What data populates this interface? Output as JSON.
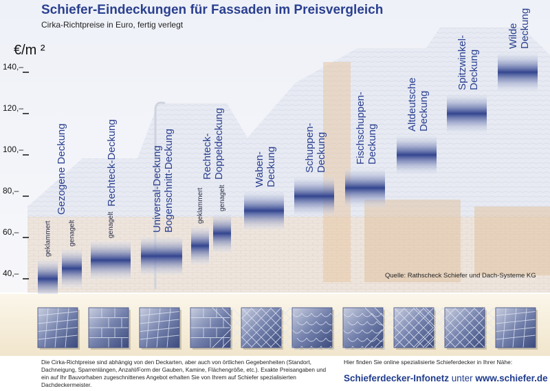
{
  "header": {
    "title": "Schiefer-Eindeckungen für Fassaden im Preisvergleich",
    "subtitle": "Cirka-Richtpreise in Euro, fertig verlegt",
    "unit": "€/m ²"
  },
  "chart_data": {
    "type": "bar",
    "title": "Schiefer-Eindeckungen für Fassaden im Preisvergleich",
    "subtitle": "Cirka-Richtpreise in Euro, fertig verlegt",
    "ylabel": "€/m ²",
    "ylim": [
      40,
      146
    ],
    "yticks": [
      "40,–",
      "60,–",
      "80,–",
      "100,–",
      "120,–",
      "140,–"
    ],
    "ytick_values": [
      40,
      60,
      80,
      100,
      120,
      140
    ],
    "categories": [
      {
        "name": "Gezogene Deckung",
        "lines": [
          "Gezogene Deckung"
        ],
        "variants": [
          {
            "label": "geklammert",
            "value": 40
          },
          {
            "label": "genagelt",
            "value": 45
          }
        ]
      },
      {
        "name": "Rechteck-Deckung",
        "lines": [
          "Rechteck-Deckung"
        ],
        "variants": [
          {
            "label": "genagelt",
            "value": 49
          }
        ]
      },
      {
        "name": "Universal-Deckung Bogenschnitt-Deckung",
        "lines": [
          "Universal-Deckung",
          "Bogenschnitt-Deckung"
        ],
        "variants": [
          {
            "label": "",
            "value": 51
          }
        ]
      },
      {
        "name": "Rechteck-Doppeldeckung",
        "lines": [
          "Rechteck-",
          "Doppeldeckung"
        ],
        "variants": [
          {
            "label": "geklammert",
            "value": 56
          },
          {
            "label": "genagelt",
            "value": 62
          }
        ]
      },
      {
        "name": "Waben-Deckung",
        "lines": [
          "Waben-",
          "Deckung"
        ],
        "variants": [
          {
            "label": "",
            "value": 73
          }
        ]
      },
      {
        "name": "Schuppen-Deckung",
        "lines": [
          "Schuppen-",
          "Deckung"
        ],
        "variants": [
          {
            "label": "",
            "value": 80
          }
        ]
      },
      {
        "name": "Fischschuppen-Deckung",
        "lines": [
          "Fischschuppen-",
          "Deckung"
        ],
        "variants": [
          {
            "label": "",
            "value": 84
          }
        ]
      },
      {
        "name": "Altdeutsche Deckung",
        "lines": [
          "Altdeutsche",
          "Deckung"
        ],
        "variants": [
          {
            "label": "",
            "value": 100
          }
        ]
      },
      {
        "name": "Spitzwinkel-Deckung",
        "lines": [
          "Spitzwinkel-",
          "Deckung"
        ],
        "variants": [
          {
            "label": "",
            "value": 120
          }
        ]
      },
      {
        "name": "Wilde Deckung",
        "lines": [
          "Wilde",
          "Deckung"
        ],
        "variants": [
          {
            "label": "",
            "value": 140
          }
        ]
      }
    ],
    "grid": false,
    "legend": "none",
    "colors": {
      "bar_dark": "#33458f",
      "bar_light": "#dde2f0",
      "title": "#2a3f8f"
    }
  },
  "source": "Quelle: Rathscheck Schiefer und Dach-Systeme KG",
  "footer": {
    "note": "Die Cirka-Richtpreise sind abhängig von den Deckarten, aber auch von örtlichen Gegebenheiten (Standort, Dachneigung, Sparrenlängen, Anzahl/Form der Gauben, Kamine, Flächengröße, etc.). Exakte Preisangaben und ein auf Ihr Bauvorhaben zugeschnittenes Angebot erhalten Sie von Ihrem auf Schiefer spezialisierten Dachdeckermeister.",
    "hint": "Hier finden Sie online spezialisierte Schieferdecker in Ihrer Nähe:",
    "link_strong": "Schieferdecker-Infonetz",
    "link_mid": " unter ",
    "link_url": "www.schiefer.de"
  },
  "tile_patterns": [
    "gezogen",
    "rechteck",
    "universal",
    "rechteck-doppel",
    "waben",
    "schuppen",
    "fischschuppen",
    "altdeutsch",
    "spitzwinkel",
    "wild"
  ]
}
